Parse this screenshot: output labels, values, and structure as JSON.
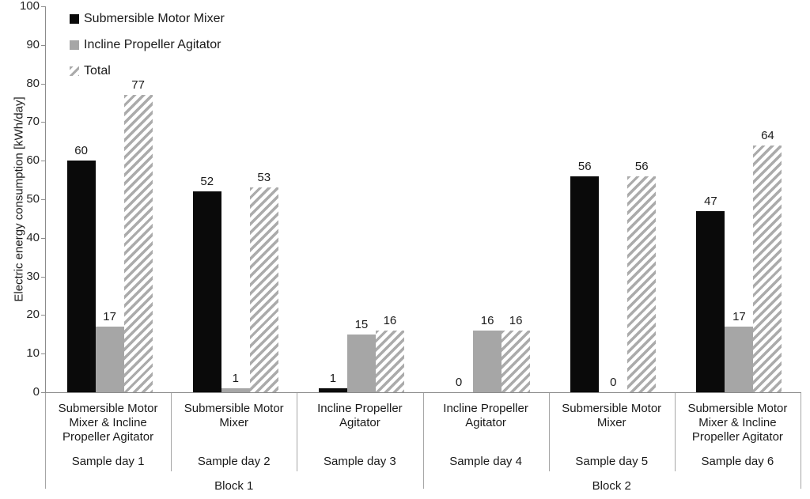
{
  "chart_data": {
    "type": "bar",
    "title": "",
    "ylabel": "Electric energy consumption [kWh/day]",
    "xlabel": "",
    "ylim": [
      0,
      100
    ],
    "ytick_step": 10,
    "grid": false,
    "legend_position": "top-left",
    "series": [
      {
        "name": "Submersible Motor Mixer",
        "style": "solid-black",
        "color": "#0a0a0a",
        "values": [
          60,
          52,
          1,
          0,
          56,
          47
        ]
      },
      {
        "name": "Incline Propeller Agitator",
        "style": "solid-gray",
        "color": "#a6a6a6",
        "values": [
          17,
          1,
          15,
          16,
          0,
          17
        ]
      },
      {
        "name": "Total",
        "style": "hatched",
        "color": "#ababab",
        "values": [
          77,
          53,
          16,
          16,
          56,
          64
        ]
      }
    ],
    "categories": [
      {
        "equipment": "Submersible Motor Mixer & Incline Propeller Agitator",
        "sample_day": "Sample day 1"
      },
      {
        "equipment": "Submersible Motor Mixer",
        "sample_day": "Sample day 2"
      },
      {
        "equipment": "Incline Propeller Agitator",
        "sample_day": "Sample day 3"
      },
      {
        "equipment": "Incline Propeller Agitator",
        "sample_day": "Sample day 4"
      },
      {
        "equipment": "Submersible Motor Mixer",
        "sample_day": "Sample day 5"
      },
      {
        "equipment": "Submersible Motor Mixer & Incline Propeller Agitator",
        "sample_day": "Sample day 6"
      }
    ],
    "blocks": [
      {
        "label": "Block 1",
        "start": 0,
        "span": 3
      },
      {
        "label": "Block 2",
        "start": 3,
        "span": 3
      }
    ]
  },
  "colors": {
    "axis": "#8c8c8c",
    "separator": "#a6a6a6",
    "text": "#1a1a1a",
    "bar_black": "#0a0a0a",
    "bar_gray": "#a6a6a6",
    "hatch_gray": "#ababab"
  }
}
